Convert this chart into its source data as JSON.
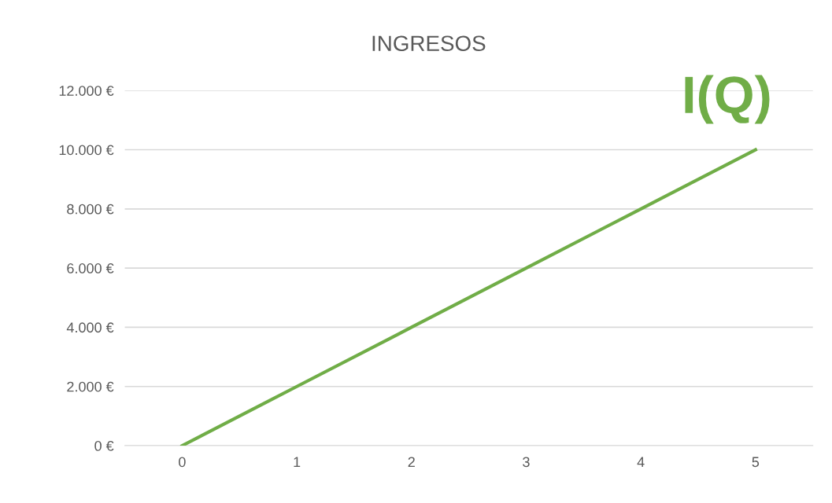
{
  "chart_data": {
    "type": "line",
    "title": "INGRESOS",
    "categories": [
      "0",
      "1",
      "2",
      "3",
      "4",
      "5"
    ],
    "series": [
      {
        "name": "I(Q)",
        "color": "#70ad47",
        "values": [
          0,
          2000,
          4000,
          6000,
          8000,
          10000
        ]
      }
    ],
    "ylim": [
      0,
      12000
    ],
    "yticks": [
      {
        "value": 0,
        "label": "0 €"
      },
      {
        "value": 2000,
        "label": "2.000 €"
      },
      {
        "value": 4000,
        "label": "4.000 €"
      },
      {
        "value": 6000,
        "label": "6.000 €"
      },
      {
        "value": 8000,
        "label": "8.000 €"
      },
      {
        "value": 10000,
        "label": "10.000 €"
      },
      {
        "value": 12000,
        "label": "12.000 €"
      }
    ],
    "grid": "y",
    "legend": false,
    "marker": "none",
    "line_style": "solid"
  }
}
